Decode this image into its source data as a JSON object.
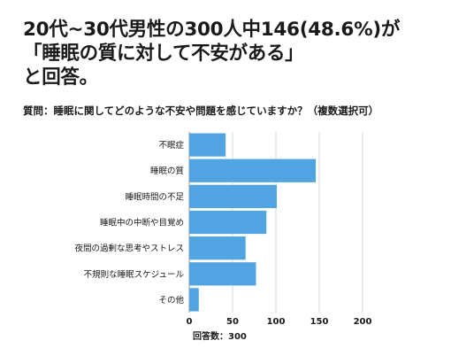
{
  "headline": {
    "line1": "20代~30代男性の300人中146(48.6%)が",
    "line2": "「睡眠の質に対して不安がある」",
    "line3": "と回答。"
  },
  "question": "質問：睡眠に関してどのような不安や問題を感じていますか？（複数選択可）",
  "chart_data": {
    "type": "bar",
    "orientation": "horizontal",
    "categories": [
      "不眠症",
      "睡眠の質",
      "睡眠時間の不足",
      "睡眠中の中断や目覚め",
      "夜間の過剰な思考やストレス",
      "不規則な睡眠スケジュール",
      "その他"
    ],
    "values": [
      42,
      146,
      101,
      89,
      65,
      77,
      11
    ],
    "xlim": [
      0,
      200
    ],
    "xticks": [
      0,
      50,
      100,
      150,
      200
    ],
    "xlabel": "回答数：300",
    "ylabel": "",
    "grid": true,
    "bar_color": "#52a3e2",
    "grid_color": "#d9d9d9"
  }
}
